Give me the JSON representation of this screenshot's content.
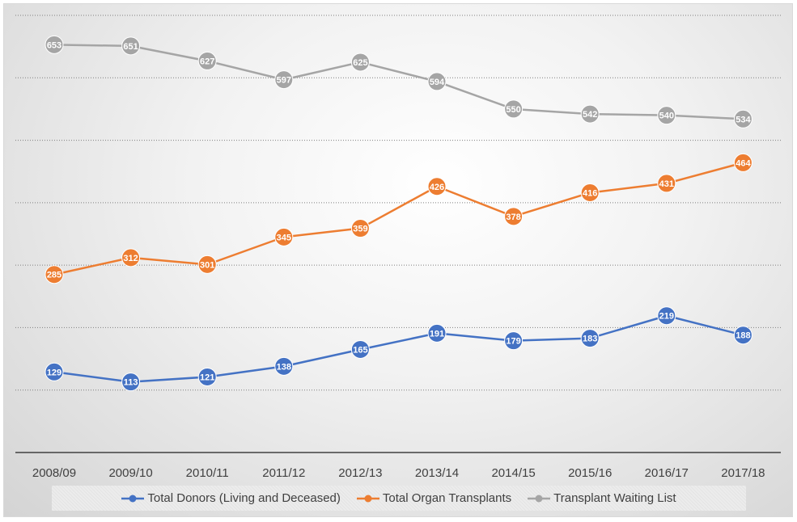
{
  "chart_data": {
    "type": "line",
    "categories": [
      "2008/09",
      "2009/10",
      "2010/11",
      "2011/12",
      "2012/13",
      "2013/14",
      "2014/15",
      "2015/16",
      "2016/17",
      "2017/18"
    ],
    "series": [
      {
        "name": "Total Donors (Living and Deceased)",
        "color": "#4472c4",
        "values": [
          129,
          113,
          121,
          138,
          165,
          191,
          179,
          183,
          219,
          188
        ]
      },
      {
        "name": "Total Organ Transplants",
        "color": "#ed7d31",
        "values": [
          285,
          312,
          301,
          345,
          359,
          426,
          378,
          416,
          431,
          464
        ]
      },
      {
        "name": "Transplant Waiting List",
        "color": "#a5a5a5",
        "values": [
          653,
          651,
          627,
          597,
          625,
          594,
          550,
          542,
          540,
          534
        ]
      }
    ],
    "ylim": [
      0,
      700
    ],
    "grid": true,
    "data_labels": true,
    "legend_position": "bottom"
  }
}
